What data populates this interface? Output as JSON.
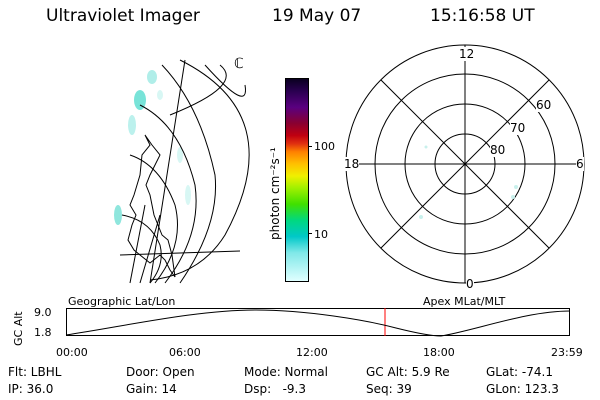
{
  "header": {
    "title": "Ultraviolet Imager",
    "date": "19 May 07",
    "time": "15:16:58 UT"
  },
  "colorbar": {
    "unit": "photon cm⁻²s⁻¹",
    "ticks": [
      "100",
      "10"
    ],
    "colors": [
      "#0a0020",
      "#2a0050",
      "#5a0080",
      "#8a0030",
      "#c00010",
      "#e03010",
      "#ff8000",
      "#ffc000",
      "#f0f000",
      "#a0f000",
      "#40e000",
      "#00d880",
      "#00c8c8",
      "#80e8e8",
      "#e0ffff"
    ]
  },
  "polar": {
    "mlt_labels": {
      "top": "12",
      "left": "18",
      "right": "6",
      "bottom": "0"
    },
    "lat_labels": [
      "60",
      "70",
      "80"
    ]
  },
  "map_label": "ℂ",
  "timeline": {
    "left_label": "Geographic Lat/Lon",
    "right_label": "Apex MLat/MLT",
    "y_axis_label": "GC Alt",
    "y_ticks": [
      "9.0",
      "1.8"
    ],
    "x_ticks": [
      "00:00",
      "06:00",
      "12:00",
      "18:00",
      "23:59"
    ],
    "current_marker_color": "#ff0000"
  },
  "info_rows": {
    "row1": {
      "flt": "Flt: LBHL",
      "door": "Door: Open",
      "mode": "Mode: Normal",
      "gcalt": "GC Alt: 5.9 Re",
      "glat": "GLat: -74.1"
    },
    "row2": {
      "ip": "IP: 36.0",
      "gain": "Gain: 14",
      "dsp": "Dsp:   -9.3",
      "seq": "Seq: 39",
      "glon": "GLon: 123.3"
    }
  }
}
